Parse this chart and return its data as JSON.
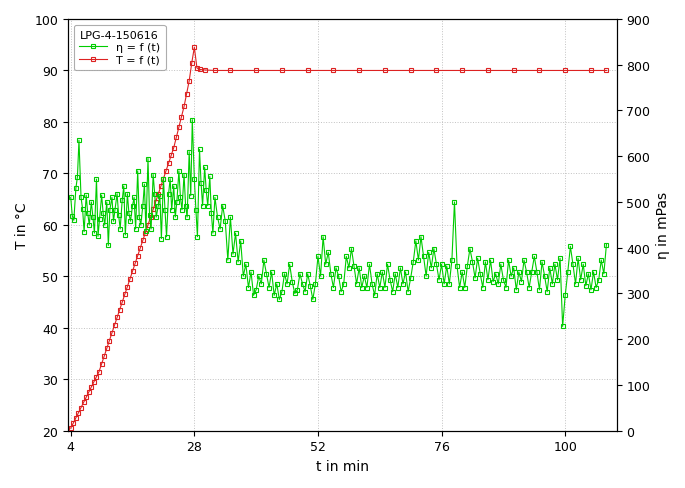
{
  "title": "LPG-4-150616",
  "xlabel": "t in min",
  "ylabel_left": "T in °C",
  "ylabel_right": "η in mPas",
  "legend_eta": "η = f (t)",
  "legend_T": "T = f (t)",
  "xlim": [
    3.5,
    110
  ],
  "xticks": [
    4,
    28,
    52,
    76,
    100
  ],
  "ylim_left": [
    20,
    100
  ],
  "ylim_right": [
    0,
    900
  ],
  "yticks_left": [
    20,
    30,
    40,
    50,
    60,
    70,
    80,
    90,
    100
  ],
  "yticks_right": [
    0,
    100,
    200,
    300,
    400,
    500,
    600,
    700,
    800,
    900
  ],
  "color_green": "#00cc00",
  "color_red": "#dd2222",
  "background": "#ffffff",
  "grid_color": "#bbbbbb",
  "T_data": [
    [
      4.0,
      20.5
    ],
    [
      4.5,
      21.5
    ],
    [
      5.0,
      22.5
    ],
    [
      5.5,
      23.5
    ],
    [
      6.0,
      24.5
    ],
    [
      6.5,
      25.5
    ],
    [
      7.0,
      26.5
    ],
    [
      7.5,
      27.5
    ],
    [
      8.0,
      28.5
    ],
    [
      8.5,
      29.5
    ],
    [
      9.0,
      30.5
    ],
    [
      9.5,
      31.5
    ],
    [
      10.0,
      33.0
    ],
    [
      10.5,
      34.5
    ],
    [
      11.0,
      36.0
    ],
    [
      11.5,
      37.5
    ],
    [
      12.0,
      39.0
    ],
    [
      12.5,
      40.5
    ],
    [
      13.0,
      42.0
    ],
    [
      13.5,
      43.5
    ],
    [
      14.0,
      45.0
    ],
    [
      14.5,
      46.5
    ],
    [
      15.0,
      48.0
    ],
    [
      15.5,
      49.5
    ],
    [
      16.0,
      51.0
    ],
    [
      16.5,
      52.5
    ],
    [
      17.0,
      54.0
    ],
    [
      17.5,
      55.5
    ],
    [
      18.0,
      57.0
    ],
    [
      18.5,
      58.5
    ],
    [
      19.0,
      60.0
    ],
    [
      19.5,
      61.5
    ],
    [
      20.0,
      63.0
    ],
    [
      20.5,
      64.5
    ],
    [
      21.0,
      66.0
    ],
    [
      21.5,
      67.5
    ],
    [
      22.0,
      69.0
    ],
    [
      22.5,
      70.5
    ],
    [
      23.0,
      72.0
    ],
    [
      23.5,
      73.5
    ],
    [
      24.0,
      75.0
    ],
    [
      24.5,
      77.0
    ],
    [
      25.0,
      79.0
    ],
    [
      25.5,
      81.0
    ],
    [
      26.0,
      83.0
    ],
    [
      26.5,
      85.5
    ],
    [
      27.0,
      88.0
    ],
    [
      27.5,
      91.5
    ],
    [
      28.0,
      94.5
    ],
    [
      28.5,
      90.5
    ],
    [
      29.0,
      90.2
    ],
    [
      30.0,
      90.1
    ],
    [
      32.0,
      90.0
    ],
    [
      35.0,
      90.0
    ],
    [
      40.0,
      90.0
    ],
    [
      45.0,
      90.0
    ],
    [
      50.0,
      90.0
    ],
    [
      55.0,
      90.0
    ],
    [
      60.0,
      90.0
    ],
    [
      65.0,
      90.0
    ],
    [
      70.0,
      90.0
    ],
    [
      75.0,
      90.0
    ],
    [
      80.0,
      90.0
    ],
    [
      85.0,
      90.0
    ],
    [
      90.0,
      90.0
    ],
    [
      95.0,
      90.0
    ],
    [
      100.0,
      90.0
    ],
    [
      105.0,
      90.0
    ],
    [
      108.0,
      90.0
    ]
  ],
  "eta_data": [
    [
      4.0,
      510
    ],
    [
      4.3,
      470
    ],
    [
      4.6,
      460
    ],
    [
      5.0,
      530
    ],
    [
      5.3,
      555
    ],
    [
      5.6,
      635
    ],
    [
      6.0,
      510
    ],
    [
      6.3,
      485
    ],
    [
      6.6,
      435
    ],
    [
      7.0,
      515
    ],
    [
      7.3,
      475
    ],
    [
      7.6,
      450
    ],
    [
      8.0,
      500
    ],
    [
      8.3,
      468
    ],
    [
      8.6,
      432
    ],
    [
      9.0,
      550
    ],
    [
      9.3,
      425
    ],
    [
      9.6,
      463
    ],
    [
      10.0,
      515
    ],
    [
      10.3,
      475
    ],
    [
      10.6,
      450
    ],
    [
      11.0,
      500
    ],
    [
      11.3,
      405
    ],
    [
      11.6,
      483
    ],
    [
      12.0,
      510
    ],
    [
      12.3,
      458
    ],
    [
      12.6,
      483
    ],
    [
      13.0,
      518
    ],
    [
      13.3,
      471
    ],
    [
      13.6,
      441
    ],
    [
      14.0,
      505
    ],
    [
      14.3,
      535
    ],
    [
      14.6,
      428
    ],
    [
      15.0,
      518
    ],
    [
      15.3,
      475
    ],
    [
      15.6,
      458
    ],
    [
      16.0,
      492
    ],
    [
      16.3,
      510
    ],
    [
      16.6,
      441
    ],
    [
      17.0,
      568
    ],
    [
      17.3,
      467
    ],
    [
      17.6,
      450
    ],
    [
      18.0,
      492
    ],
    [
      18.3,
      539
    ],
    [
      18.6,
      437
    ],
    [
      19.0,
      595
    ],
    [
      19.3,
      471
    ],
    [
      19.6,
      441
    ],
    [
      20.0,
      560
    ],
    [
      20.3,
      518
    ],
    [
      20.6,
      467
    ],
    [
      21.0,
      492
    ],
    [
      21.3,
      514
    ],
    [
      21.6,
      420
    ],
    [
      22.0,
      551
    ],
    [
      22.3,
      483
    ],
    [
      22.6,
      424
    ],
    [
      23.0,
      518
    ],
    [
      23.3,
      551
    ],
    [
      23.6,
      483
    ],
    [
      24.0,
      535
    ],
    [
      24.3,
      467
    ],
    [
      24.6,
      500
    ],
    [
      25.0,
      568
    ],
    [
      25.3,
      510
    ],
    [
      25.6,
      483
    ],
    [
      26.0,
      560
    ],
    [
      26.3,
      492
    ],
    [
      26.6,
      467
    ],
    [
      27.0,
      610
    ],
    [
      27.3,
      514
    ],
    [
      27.6,
      680
    ],
    [
      28.0,
      551
    ],
    [
      28.3,
      483
    ],
    [
      28.6,
      424
    ],
    [
      29.0,
      615
    ],
    [
      29.3,
      542
    ],
    [
      29.6,
      492
    ],
    [
      30.0,
      576
    ],
    [
      30.3,
      526
    ],
    [
      30.6,
      492
    ],
    [
      31.0,
      556
    ],
    [
      31.3,
      475
    ],
    [
      31.6,
      432
    ],
    [
      32.0,
      510
    ],
    [
      32.5,
      467
    ],
    [
      33.0,
      441
    ],
    [
      33.5,
      492
    ],
    [
      34.0,
      458
    ],
    [
      34.5,
      373
    ],
    [
      35.0,
      467
    ],
    [
      35.5,
      386
    ],
    [
      36.0,
      432
    ],
    [
      36.5,
      369
    ],
    [
      37.0,
      415
    ],
    [
      37.5,
      338
    ],
    [
      38.0,
      364
    ],
    [
      38.5,
      313
    ],
    [
      39.0,
      347
    ],
    [
      39.5,
      296
    ],
    [
      40.0,
      308
    ],
    [
      40.5,
      338
    ],
    [
      41.0,
      321
    ],
    [
      41.5,
      373
    ],
    [
      42.0,
      343
    ],
    [
      42.5,
      313
    ],
    [
      43.0,
      347
    ],
    [
      43.5,
      296
    ],
    [
      44.0,
      321
    ],
    [
      44.5,
      287
    ],
    [
      45.0,
      304
    ],
    [
      45.5,
      343
    ],
    [
      46.0,
      321
    ],
    [
      46.5,
      364
    ],
    [
      47.0,
      326
    ],
    [
      47.5,
      300
    ],
    [
      48.0,
      308
    ],
    [
      48.5,
      343
    ],
    [
      49.0,
      321
    ],
    [
      49.5,
      304
    ],
    [
      50.0,
      343
    ],
    [
      50.5,
      317
    ],
    [
      51.0,
      287
    ],
    [
      51.5,
      321
    ],
    [
      52.0,
      381
    ],
    [
      52.5,
      338
    ],
    [
      53.0,
      424
    ],
    [
      53.5,
      364
    ],
    [
      54.0,
      390
    ],
    [
      54.5,
      343
    ],
    [
      55.0,
      313
    ],
    [
      55.5,
      356
    ],
    [
      56.0,
      338
    ],
    [
      56.5,
      304
    ],
    [
      57.0,
      321
    ],
    [
      57.5,
      381
    ],
    [
      58.0,
      356
    ],
    [
      58.5,
      398
    ],
    [
      59.0,
      360
    ],
    [
      59.5,
      321
    ],
    [
      60.0,
      356
    ],
    [
      60.5,
      313
    ],
    [
      61.0,
      338
    ],
    [
      61.5,
      313
    ],
    [
      62.0,
      364
    ],
    [
      62.5,
      321
    ],
    [
      63.0,
      296
    ],
    [
      63.5,
      343
    ],
    [
      64.0,
      313
    ],
    [
      64.5,
      347
    ],
    [
      65.0,
      313
    ],
    [
      65.5,
      364
    ],
    [
      66.0,
      330
    ],
    [
      66.5,
      304
    ],
    [
      67.0,
      343
    ],
    [
      67.5,
      313
    ],
    [
      68.0,
      356
    ],
    [
      68.5,
      321
    ],
    [
      69.0,
      347
    ],
    [
      69.5,
      304
    ],
    [
      70.0,
      334
    ],
    [
      70.5,
      369
    ],
    [
      71.0,
      415
    ],
    [
      71.5,
      373
    ],
    [
      72.0,
      424
    ],
    [
      72.5,
      381
    ],
    [
      73.0,
      338
    ],
    [
      73.5,
      390
    ],
    [
      74.0,
      356
    ],
    [
      74.5,
      398
    ],
    [
      75.0,
      364
    ],
    [
      75.5,
      330
    ],
    [
      76.0,
      364
    ],
    [
      76.5,
      321
    ],
    [
      77.0,
      360
    ],
    [
      77.5,
      321
    ],
    [
      78.0,
      373
    ],
    [
      78.5,
      500
    ],
    [
      79.0,
      360
    ],
    [
      79.5,
      313
    ],
    [
      80.0,
      347
    ],
    [
      80.5,
      313
    ],
    [
      81.0,
      360
    ],
    [
      81.5,
      398
    ],
    [
      82.0,
      369
    ],
    [
      82.5,
      334
    ],
    [
      83.0,
      377
    ],
    [
      83.5,
      343
    ],
    [
      84.0,
      313
    ],
    [
      84.5,
      369
    ],
    [
      85.0,
      330
    ],
    [
      85.5,
      373
    ],
    [
      86.0,
      326
    ],
    [
      86.5,
      343
    ],
    [
      87.0,
      321
    ],
    [
      87.5,
      364
    ],
    [
      88.0,
      330
    ],
    [
      88.5,
      313
    ],
    [
      89.0,
      373
    ],
    [
      89.5,
      338
    ],
    [
      90.0,
      356
    ],
    [
      90.5,
      308
    ],
    [
      91.0,
      347
    ],
    [
      91.5,
      326
    ],
    [
      92.0,
      373
    ],
    [
      92.5,
      347
    ],
    [
      93.0,
      313
    ],
    [
      93.5,
      347
    ],
    [
      94.0,
      381
    ],
    [
      94.5,
      347
    ],
    [
      95.0,
      308
    ],
    [
      95.5,
      369
    ],
    [
      96.0,
      338
    ],
    [
      96.5,
      304
    ],
    [
      97.0,
      356
    ],
    [
      97.5,
      321
    ],
    [
      98.0,
      364
    ],
    [
      98.5,
      330
    ],
    [
      99.0,
      377
    ],
    [
      99.5,
      228
    ],
    [
      100.0,
      296
    ],
    [
      100.5,
      347
    ],
    [
      101.0,
      403
    ],
    [
      101.5,
      364
    ],
    [
      102.0,
      321
    ],
    [
      102.5,
      377
    ],
    [
      103.0,
      330
    ],
    [
      103.5,
      364
    ],
    [
      104.0,
      317
    ],
    [
      104.5,
      343
    ],
    [
      105.0,
      308
    ],
    [
      105.5,
      347
    ],
    [
      106.0,
      313
    ],
    [
      106.5,
      330
    ],
    [
      107.0,
      373
    ],
    [
      107.5,
      343
    ],
    [
      108.0,
      407
    ]
  ]
}
